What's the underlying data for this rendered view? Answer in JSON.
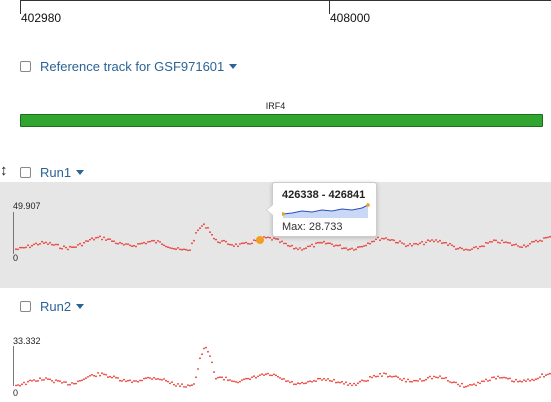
{
  "ruler": {
    "start_label": "402980",
    "mid_label": "408000"
  },
  "reference_track": {
    "label": "Reference track for GSF971601",
    "checked": false
  },
  "gene": {
    "name": "IRF4",
    "color": "#30a530"
  },
  "tracks": [
    {
      "label": "Run1",
      "max_label": "49.907",
      "min_label": "0",
      "max_value": 49.907,
      "checked": false,
      "highlight_color": "#f0a020",
      "point_color": "#e8322a",
      "background": "#e6e6e6"
    },
    {
      "label": "Run2",
      "max_label": "33.332",
      "min_label": "0",
      "max_value": 33.332,
      "checked": false,
      "point_color": "#e8322a",
      "background": "#ffffff"
    }
  ],
  "tooltip": {
    "range": "426338 - 426841",
    "max_text": "Max: 28.733",
    "spark_color": "#2a4fbf",
    "spark_fill": "#c9d8f5"
  },
  "icons": {
    "resize": "up-down-arrow-icon",
    "dropdown": "caret-down-icon"
  }
}
